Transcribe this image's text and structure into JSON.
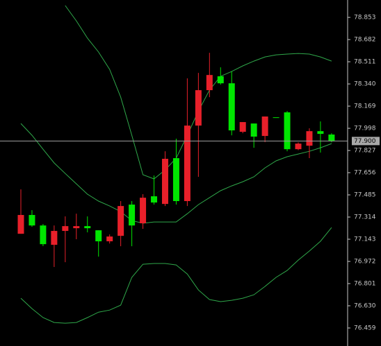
{
  "chart_data": {
    "type": "candlestick",
    "up_color": "#e8202a",
    "down_color": "#00e600",
    "band_color": "#2fa84a",
    "axis_color": "#c8c8c8",
    "ylim": [
      76.32,
      78.987
    ],
    "yticks": [
      78.853,
      78.682,
      78.511,
      {
        "value": 78.34,
        "label": "78.340"
      },
      78.169,
      77.998,
      77.827,
      77.656,
      77.485,
      77.314,
      77.143,
      76.972,
      76.801,
      {
        "value": 76.63,
        "label": "76.630"
      },
      76.459
    ],
    "last_price": {
      "value": 77.9,
      "label": "77.900"
    },
    "open": [
      77.185,
      77.33,
      77.249,
      77.1,
      77.207,
      77.228,
      77.244,
      77.212,
      77.127,
      77.169,
      77.41,
      77.266,
      77.474,
      77.415,
      77.768,
      77.437,
      78.019,
      78.292,
      78.399,
      78.345,
      77.971,
      78.035,
      77.939,
      78.083,
      78.121,
      77.837,
      77.864,
      77.976,
      77.95
    ],
    "high": [
      77.527,
      77.367,
      77.26,
      77.249,
      77.319,
      77.34,
      77.319,
      77.212,
      77.18,
      77.437,
      77.437,
      77.49,
      77.634,
      77.821,
      77.918,
      78.383,
      78.425,
      78.58,
      78.468,
      78.436,
      78.046,
      78.035,
      78.089,
      78.083,
      78.131,
      77.89,
      77.998,
      78.051,
      77.96
    ],
    "low": [
      77.185,
      77.239,
      77.09,
      76.929,
      76.966,
      77.143,
      77.196,
      77.009,
      77.11,
      77.089,
      77.089,
      77.223,
      77.41,
      77.399,
      77.41,
      77.399,
      77.624,
      78.238,
      78.335,
      77.944,
      77.96,
      77.848,
      77.891,
      78.083,
      77.821,
      77.83,
      77.768,
      77.811,
      77.89
    ],
    "close": [
      77.33,
      77.249,
      77.105,
      77.207,
      77.244,
      77.244,
      77.228,
      77.127,
      77.164,
      77.399,
      77.249,
      77.463,
      77.426,
      77.763,
      77.437,
      78.019,
      78.292,
      78.409,
      78.345,
      77.982,
      78.046,
      77.934,
      78.089,
      78.083,
      77.837,
      77.88,
      77.976,
      77.955,
      77.9
    ],
    "bands": [
      {
        "values": [
          null,
          null,
          null,
          null,
          78.944,
          78.826,
          78.693,
          78.586,
          78.452,
          78.238,
          77.944,
          77.64,
          77.608,
          77.677,
          77.768,
          77.944,
          78.131,
          78.292,
          78.399,
          78.436,
          78.479,
          78.516,
          78.548,
          78.564,
          78.57,
          78.575,
          78.57,
          78.548,
          78.516
        ]
      },
      {
        "values": [
          78.035,
          77.944,
          77.837,
          77.731,
          77.65,
          77.57,
          77.49,
          77.437,
          77.399,
          77.356,
          77.287,
          77.266,
          77.276,
          77.276,
          77.276,
          77.34,
          77.41,
          77.463,
          77.517,
          77.554,
          77.586,
          77.624,
          77.693,
          77.747,
          77.779,
          77.8,
          77.821,
          77.848,
          77.88
        ]
      },
      {
        "values": [
          76.688,
          76.608,
          76.539,
          76.501,
          76.496,
          76.501,
          76.539,
          76.581,
          76.597,
          76.635,
          76.849,
          76.95,
          76.956,
          76.956,
          76.945,
          76.875,
          76.752,
          76.678,
          76.662,
          76.672,
          76.688,
          76.715,
          76.779,
          76.849,
          76.902,
          76.982,
          77.052,
          77.127,
          77.233
        ]
      }
    ]
  }
}
